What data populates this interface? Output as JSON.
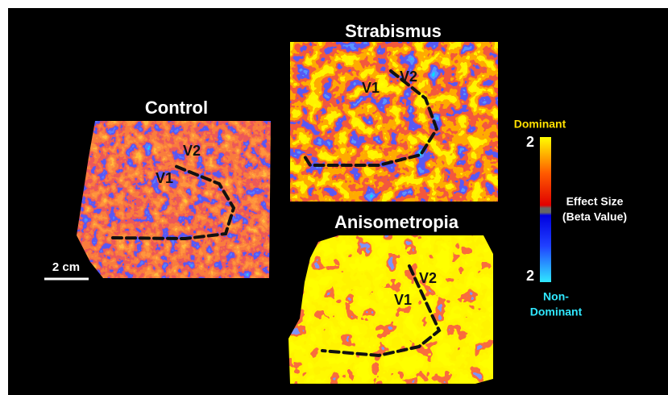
{
  "panels": [
    {
      "title": "Control",
      "labels": [
        "V2",
        "V1"
      ]
    },
    {
      "title": "Strabismus",
      "labels": [
        "V1",
        "V2"
      ]
    },
    {
      "title": "Anisometropia",
      "labels": [
        "V2",
        "V1"
      ]
    }
  ],
  "scale_bar": "2 cm",
  "colorbar": {
    "top_label": "Dominant",
    "top_value": "2",
    "title": [
      "Effect Size",
      "(Beta Value)"
    ],
    "bottom_value": "2",
    "bottom_label": [
      "Non-",
      "Dominant"
    ]
  }
}
